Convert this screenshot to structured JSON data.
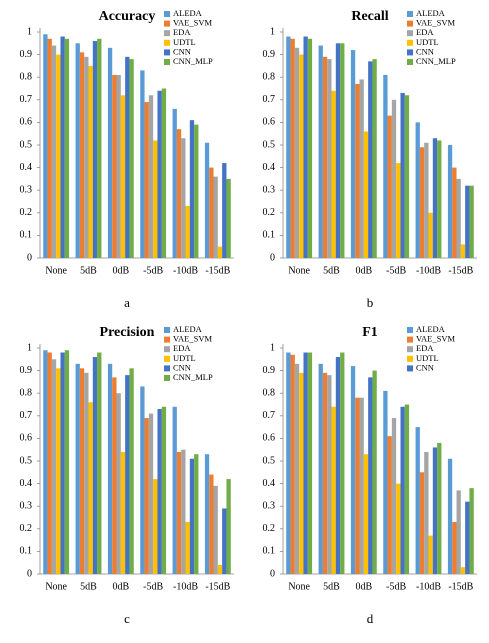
{
  "chart_data": [
    {
      "type": "bar",
      "title": "Accuracy",
      "caption": "a",
      "categories": [
        "None",
        "5dB",
        "0dB",
        "-5dB",
        "-10dB",
        "-15dB"
      ],
      "series": [
        {
          "name": "ALEDA",
          "color": "#5b9bd5",
          "values": [
            0.99,
            0.95,
            0.93,
            0.83,
            0.66,
            0.51
          ]
        },
        {
          "name": "VAE_SVM",
          "color": "#ed7d31",
          "values": [
            0.97,
            0.91,
            0.81,
            0.69,
            0.57,
            0.4
          ]
        },
        {
          "name": "EDA",
          "color": "#a5a5a5",
          "values": [
            0.94,
            0.89,
            0.81,
            0.72,
            0.53,
            0.36
          ]
        },
        {
          "name": "UDTL",
          "color": "#ffc000",
          "values": [
            0.9,
            0.85,
            0.72,
            0.52,
            0.23,
            0.05
          ]
        },
        {
          "name": "CNN",
          "color": "#4472c4",
          "values": [
            0.98,
            0.96,
            0.89,
            0.74,
            0.61,
            0.42
          ]
        },
        {
          "name": "CNN_MLP",
          "color": "#70ad47",
          "values": [
            0.97,
            0.97,
            0.88,
            0.75,
            0.59,
            0.35
          ]
        }
      ],
      "ylim": [
        0,
        1
      ],
      "yticks": [
        0,
        0.1,
        0.2,
        0.3,
        0.4,
        0.5,
        0.6,
        0.7,
        0.8,
        0.9,
        1
      ],
      "legend": "upper right"
    },
    {
      "type": "bar",
      "title": "Recall",
      "caption": "b",
      "categories": [
        "None",
        "5dB",
        "0dB",
        "-5dB",
        "-10dB",
        "-15dB"
      ],
      "series": [
        {
          "name": "ALEDA",
          "color": "#5b9bd5",
          "values": [
            0.98,
            0.94,
            0.92,
            0.81,
            0.6,
            0.5
          ]
        },
        {
          "name": "VAE_SVM",
          "color": "#ed7d31",
          "values": [
            0.97,
            0.89,
            0.77,
            0.63,
            0.49,
            0.4
          ]
        },
        {
          "name": "EDA",
          "color": "#a5a5a5",
          "values": [
            0.93,
            0.88,
            0.79,
            0.7,
            0.51,
            0.35
          ]
        },
        {
          "name": "UDTL",
          "color": "#ffc000",
          "values": [
            0.9,
            0.74,
            0.56,
            0.42,
            0.2,
            0.06
          ]
        },
        {
          "name": "CNN",
          "color": "#4472c4",
          "values": [
            0.98,
            0.95,
            0.87,
            0.73,
            0.53,
            0.32
          ]
        },
        {
          "name": "CNN_MLP",
          "color": "#70ad47",
          "values": [
            0.97,
            0.95,
            0.88,
            0.72,
            0.52,
            0.32
          ]
        }
      ],
      "ylim": [
        0,
        1
      ],
      "yticks": [
        0,
        0.1,
        0.2,
        0.3,
        0.4,
        0.5,
        0.6,
        0.7,
        0.8,
        0.9,
        1
      ],
      "legend": "upper right"
    },
    {
      "type": "bar",
      "title": "Precision",
      "caption": "c",
      "categories": [
        "None",
        "5dB",
        "0dB",
        "-5dB",
        "-10dB",
        "-15dB"
      ],
      "series": [
        {
          "name": "ALEDA",
          "color": "#5b9bd5",
          "values": [
            0.99,
            0.93,
            0.93,
            0.83,
            0.74,
            0.53
          ]
        },
        {
          "name": "VAE_SVM",
          "color": "#ed7d31",
          "values": [
            0.98,
            0.91,
            0.87,
            0.69,
            0.54,
            0.44
          ]
        },
        {
          "name": "EDA",
          "color": "#a5a5a5",
          "values": [
            0.95,
            0.89,
            0.8,
            0.71,
            0.55,
            0.39
          ]
        },
        {
          "name": "UDTL",
          "color": "#ffc000",
          "values": [
            0.91,
            0.76,
            0.54,
            0.42,
            0.23,
            0.04
          ]
        },
        {
          "name": "CNN",
          "color": "#4472c4",
          "values": [
            0.98,
            0.96,
            0.88,
            0.73,
            0.51,
            0.29
          ]
        },
        {
          "name": "CNN_MLP",
          "color": "#70ad47",
          "values": [
            0.99,
            0.98,
            0.91,
            0.74,
            0.53,
            0.42
          ]
        }
      ],
      "ylim": [
        0,
        1
      ],
      "yticks": [
        0,
        0.1,
        0.2,
        0.3,
        0.4,
        0.5,
        0.6,
        0.7,
        0.8,
        0.9,
        1
      ],
      "legend": "upper right"
    },
    {
      "type": "bar",
      "title": "F1",
      "caption": "d",
      "categories": [
        "None",
        "5dB",
        "0dB",
        "-5dB",
        "-10dB",
        "-15dB"
      ],
      "series": [
        {
          "name": "ALEDA",
          "color": "#5b9bd5",
          "values": [
            0.98,
            0.93,
            0.92,
            0.81,
            0.65,
            0.51
          ]
        },
        {
          "name": "VAE_SVM",
          "color": "#ed7d31",
          "values": [
            0.97,
            0.89,
            0.78,
            0.61,
            0.45,
            0.23
          ]
        },
        {
          "name": "EDA",
          "color": "#a5a5a5",
          "values": [
            0.93,
            0.88,
            0.78,
            0.69,
            0.54,
            0.37
          ]
        },
        {
          "name": "UDTL",
          "color": "#ffc000",
          "values": [
            0.89,
            0.74,
            0.53,
            0.4,
            0.17,
            0.03
          ]
        },
        {
          "name": "CNN",
          "color": "#4472c4",
          "values": [
            0.98,
            0.96,
            0.87,
            0.74,
            0.56,
            0.32
          ]
        },
        {
          "color": "#70ad47",
          "values": [
            0.98,
            0.98,
            0.9,
            0.75,
            0.58,
            0.38
          ]
        }
      ],
      "ylim": [
        0,
        1
      ],
      "yticks": [
        0,
        0.1,
        0.2,
        0.3,
        0.4,
        0.5,
        0.6,
        0.7,
        0.8,
        0.9,
        1
      ],
      "legend": "upper right"
    }
  ]
}
